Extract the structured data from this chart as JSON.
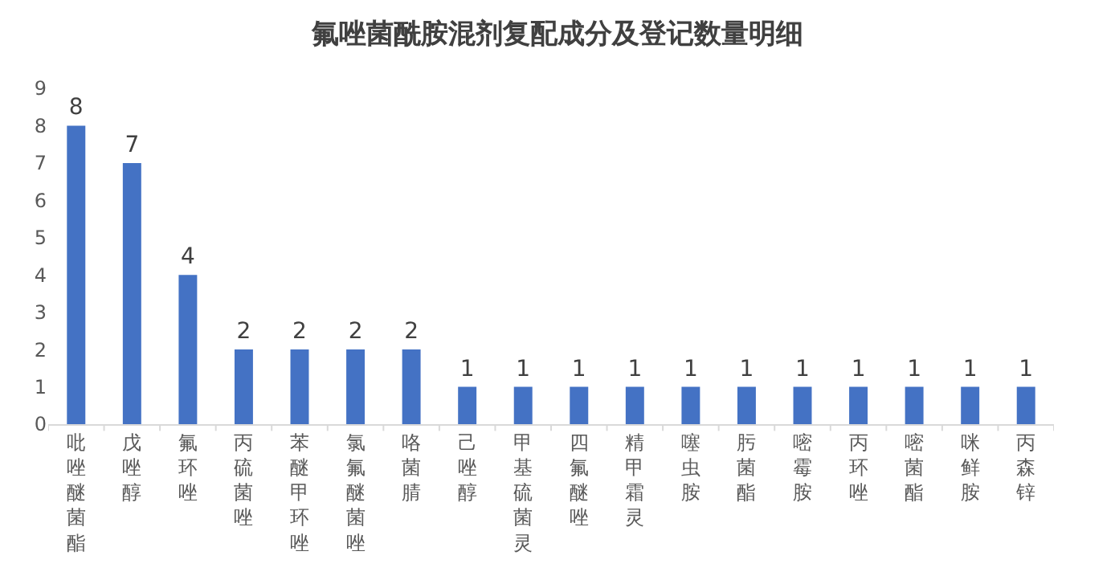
{
  "chart_data": {
    "type": "bar",
    "title": "氟唑菌酰胺混剂复配成分及登记数量明细",
    "categories": [
      "吡唑醚菌酯",
      "戊唑醇",
      "氟环唑",
      "丙硫菌唑",
      "苯醚甲环唑",
      "氯氟醚菌唑",
      "咯菌腈",
      "己唑醇",
      "甲基硫菌灵",
      "四氟醚唑",
      "精甲霜灵",
      "噻虫胺",
      "肟菌酯",
      "嘧霉胺",
      "丙环唑",
      "嘧菌酯",
      "咪鲜胺",
      "丙森锌"
    ],
    "values": [
      8,
      7,
      4,
      2,
      2,
      2,
      2,
      1,
      1,
      1,
      1,
      1,
      1,
      1,
      1,
      1,
      1,
      1
    ],
    "color": "#4472c4",
    "ylim": [
      0,
      9
    ],
    "yticks": [
      0,
      1,
      2,
      3,
      4,
      5,
      6,
      7,
      8,
      9
    ],
    "grid": false,
    "data_labels": true
  }
}
